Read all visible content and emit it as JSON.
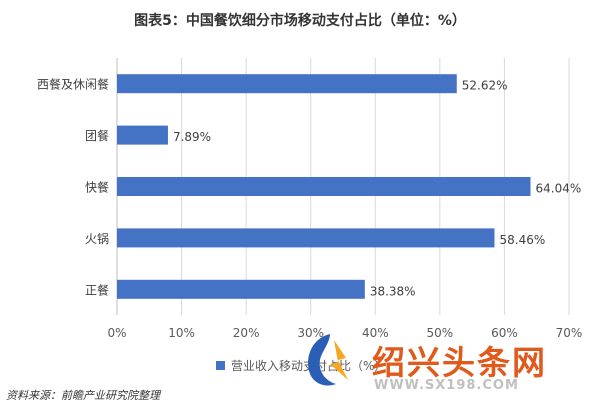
{
  "chart_data": {
    "type": "bar",
    "orientation": "horizontal",
    "title": "图表5：中国餐饮细分市场移动支付占比（单位：%）",
    "categories": [
      "西餐及休闲餐",
      "团餐",
      "快餐",
      "火锅",
      "正餐"
    ],
    "series": [
      {
        "name": "营业收入移动支付占比（%）",
        "values": [
          52.62,
          7.89,
          64.04,
          58.46,
          38.38
        ]
      }
    ],
    "data_labels": [
      "52.62%",
      "7.89%",
      "64.04%",
      "58.46%",
      "38.38%"
    ],
    "xlim": [
      0,
      70
    ],
    "xticks": [
      "0%",
      "10%",
      "20%",
      "30%",
      "40%",
      "50%",
      "60%",
      "70%"
    ],
    "grid": "vertical",
    "legend_position": "bottom",
    "bar_color": "#4472c4"
  },
  "legend": {
    "label": "营业收入移动支付占比（%）"
  },
  "source": "资料来源：前瞻产业研究院整理",
  "watermark": {
    "brand": "绍兴头条网",
    "url": "WWW.SX198.COM"
  }
}
